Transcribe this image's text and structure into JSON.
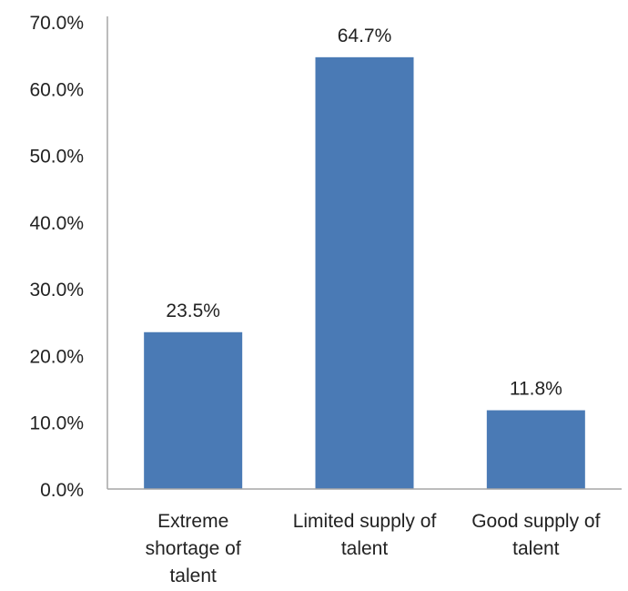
{
  "chart_data": {
    "type": "bar",
    "title": "",
    "xlabel": "",
    "ylabel": "",
    "categories": [
      [
        "Extreme",
        "shortage of",
        "talent"
      ],
      [
        "Limited supply of",
        "talent"
      ],
      [
        "Good supply of",
        "talent"
      ]
    ],
    "values": [
      23.5,
      64.7,
      11.8
    ],
    "data_labels": [
      "23.5%",
      "64.7%",
      "11.8%"
    ],
    "ylim": [
      0,
      70
    ],
    "yticks": [
      0,
      10,
      20,
      30,
      40,
      50,
      60,
      70
    ],
    "ytick_labels": [
      "0.0%",
      "10.0%",
      "20.0%",
      "30.0%",
      "40.0%",
      "50.0%",
      "60.0%",
      "70.0%"
    ],
    "grid": false,
    "legend": "none",
    "bar_color": "#4a7ab5"
  }
}
